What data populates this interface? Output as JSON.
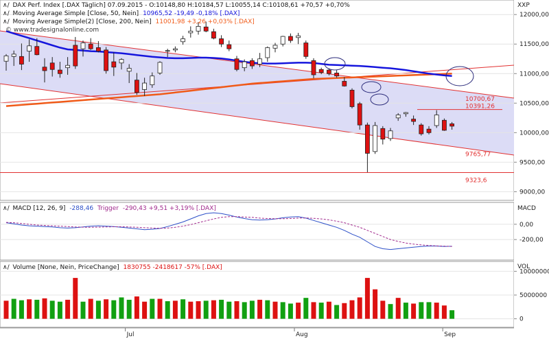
{
  "header": {
    "logo_mark": "XXP",
    "title_line": "DAX Perf. Index [.DAX Täglich] 07.09.2015 - O:10148,80 H:10184,57 L:10055,14 C:10108,61 +70,57 +0,70%",
    "ma50_label": "Moving Average Simple [Close, 50, Nein]",
    "ma50_value": "10965,52 -19,49 -0,18% [.DAX]",
    "ma200_label": "Moving Average Simple(2) [Close, 200, Nein]",
    "ma200_value": "11001,98 +3,26 +0,03% [.DAX]",
    "source": "© www.tradesignalonline.com"
  },
  "macd_panel": {
    "label": "MACD [12, 26, 9]",
    "macd_value": "-288,46",
    "trigger_label": "Trigger",
    "trigger_value": "-290,43 +9,51 +3,19% [.DAX]",
    "axis_title": "MACD"
  },
  "volume_panel": {
    "label": "Volume [None, Nein, PriceChange]",
    "value": "1830755 -2418617 -57% [.DAX]",
    "axis_title": "VOL"
  },
  "colors": {
    "up": "#dd1111",
    "down": "#11a011",
    "candle_up_body": "#ffffff",
    "candle_down_body": "#dd1111",
    "ma50": "#1515dd",
    "ma200": "#f05a18",
    "channel": "#e23030",
    "channel_fill": "#dcdcf6",
    "macd": "#2c4fc8",
    "trigger": "#a0288c"
  },
  "chart_data": [
    {
      "type": "candlestick",
      "name": "price",
      "x_labels": [
        "Jul",
        "Aug",
        "Sep"
      ],
      "y_tick_labels": [
        "12000,00",
        "11500,00",
        "11000,00",
        "10500,00",
        "10000,00",
        "9500,00",
        "9000,00"
      ],
      "ylim": [
        8900,
        12200
      ],
      "level_labels": [
        "10700,67",
        "10391,26",
        "9765,77",
        "9323,6"
      ],
      "levels": [
        10700.67,
        10391.26,
        9765.77,
        9323.6
      ],
      "candles": [
        {
          "o": 11210,
          "h": 11330,
          "l": 11050,
          "c": 11300
        },
        {
          "o": 11290,
          "h": 11390,
          "l": 11130,
          "c": 11330
        },
        {
          "o": 11290,
          "h": 11510,
          "l": 11060,
          "c": 11160
        },
        {
          "o": 11380,
          "h": 11580,
          "l": 11200,
          "c": 11470
        },
        {
          "o": 11460,
          "h": 11600,
          "l": 11310,
          "c": 11320
        },
        {
          "o": 11110,
          "h": 11260,
          "l": 10850,
          "c": 11050
        },
        {
          "o": 11180,
          "h": 11280,
          "l": 10950,
          "c": 11070
        },
        {
          "o": 11060,
          "h": 11200,
          "l": 10930,
          "c": 11000
        },
        {
          "o": 11100,
          "h": 11280,
          "l": 10980,
          "c": 11140
        },
        {
          "o": 11480,
          "h": 11620,
          "l": 11080,
          "c": 11130
        },
        {
          "o": 11420,
          "h": 11560,
          "l": 11290,
          "c": 11520
        },
        {
          "o": 11500,
          "h": 11600,
          "l": 11400,
          "c": 11420
        },
        {
          "o": 11440,
          "h": 11550,
          "l": 11360,
          "c": 11380
        },
        {
          "o": 11400,
          "h": 11450,
          "l": 11000,
          "c": 11050
        },
        {
          "o": 11200,
          "h": 11360,
          "l": 10960,
          "c": 11110
        },
        {
          "o": 11180,
          "h": 11260,
          "l": 11070,
          "c": 11240
        },
        {
          "o": 11040,
          "h": 11160,
          "l": 10840,
          "c": 11090
        },
        {
          "o": 10890,
          "h": 11010,
          "l": 10640,
          "c": 10680
        },
        {
          "o": 10730,
          "h": 10930,
          "l": 10620,
          "c": 10840
        },
        {
          "o": 10810,
          "h": 11020,
          "l": 10760,
          "c": 10960
        },
        {
          "o": 11010,
          "h": 11210,
          "l": 10980,
          "c": 11190
        },
        {
          "o": 11380,
          "h": 11420,
          "l": 11280,
          "c": 11390
        },
        {
          "o": 11400,
          "h": 11460,
          "l": 11360,
          "c": 11420
        },
        {
          "o": 11540,
          "h": 11640,
          "l": 11490,
          "c": 11590
        },
        {
          "o": 11690,
          "h": 11800,
          "l": 11610,
          "c": 11720
        },
        {
          "o": 11720,
          "h": 11870,
          "l": 11660,
          "c": 11800
        },
        {
          "o": 11790,
          "h": 11880,
          "l": 11700,
          "c": 11720
        },
        {
          "o": 11710,
          "h": 11760,
          "l": 11580,
          "c": 11600
        },
        {
          "o": 11590,
          "h": 11650,
          "l": 11450,
          "c": 11500
        },
        {
          "o": 11490,
          "h": 11560,
          "l": 11380,
          "c": 11420
        },
        {
          "o": 11250,
          "h": 11300,
          "l": 11040,
          "c": 11070
        },
        {
          "o": 11100,
          "h": 11240,
          "l": 11040,
          "c": 11200
        },
        {
          "o": 11220,
          "h": 11260,
          "l": 11080,
          "c": 11130
        },
        {
          "o": 11160,
          "h": 11350,
          "l": 11110,
          "c": 11250
        },
        {
          "o": 11270,
          "h": 11460,
          "l": 11200,
          "c": 11440
        },
        {
          "o": 11430,
          "h": 11520,
          "l": 11360,
          "c": 11480
        },
        {
          "o": 11500,
          "h": 11640,
          "l": 11460,
          "c": 11630
        },
        {
          "o": 11630,
          "h": 11680,
          "l": 11520,
          "c": 11560
        },
        {
          "o": 11610,
          "h": 11690,
          "l": 11500,
          "c": 11640
        },
        {
          "o": 11520,
          "h": 11560,
          "l": 11250,
          "c": 11290
        },
        {
          "o": 11220,
          "h": 11260,
          "l": 10920,
          "c": 10980
        },
        {
          "o": 11070,
          "h": 11100,
          "l": 10990,
          "c": 11020
        },
        {
          "o": 11060,
          "h": 11090,
          "l": 10970,
          "c": 11000
        },
        {
          "o": 11010,
          "h": 11060,
          "l": 10930,
          "c": 10960
        },
        {
          "o": 10870,
          "h": 10940,
          "l": 10780,
          "c": 10790
        },
        {
          "o": 10720,
          "h": 10750,
          "l": 10410,
          "c": 10440
        },
        {
          "o": 10490,
          "h": 10520,
          "l": 10050,
          "c": 10130
        },
        {
          "o": 10130,
          "h": 10170,
          "l": 9330,
          "c": 9650
        },
        {
          "o": 9680,
          "h": 10180,
          "l": 9640,
          "c": 10120
        },
        {
          "o": 10070,
          "h": 10110,
          "l": 9800,
          "c": 9890
        },
        {
          "o": 9900,
          "h": 10080,
          "l": 9860,
          "c": 10030
        },
        {
          "o": 10250,
          "h": 10330,
          "l": 10200,
          "c": 10300
        },
        {
          "o": 10320,
          "h": 10350,
          "l": 10270,
          "c": 10340
        },
        {
          "o": 10230,
          "h": 10290,
          "l": 10130,
          "c": 10190
        },
        {
          "o": 10130,
          "h": 10160,
          "l": 9950,
          "c": 9980
        },
        {
          "o": 10060,
          "h": 10110,
          "l": 9970,
          "c": 10000
        },
        {
          "o": 10120,
          "h": 10380,
          "l": 10080,
          "c": 10300
        },
        {
          "o": 10210,
          "h": 10240,
          "l": 10030,
          "c": 10040
        },
        {
          "o": 10150,
          "h": 10180,
          "l": 10050,
          "c": 10110
        }
      ],
      "ma50": [
        11720,
        11680,
        11640,
        11600,
        11560,
        11520,
        11480,
        11440,
        11410,
        11400,
        11390,
        11380,
        11375,
        11365,
        11355,
        11345,
        11330,
        11315,
        11300,
        11285,
        11275,
        11265,
        11260,
        11260,
        11265,
        11270,
        11270,
        11265,
        11255,
        11240,
        11220,
        11200,
        11185,
        11175,
        11170,
        11170,
        11175,
        11180,
        11185,
        11185,
        11180,
        11165,
        11150,
        11145,
        11140,
        11135,
        11130,
        11120,
        11110,
        11100,
        11090,
        11075,
        11060,
        11040,
        11020,
        11000,
        10985,
        10970,
        10960
      ],
      "ma200": [
        10450,
        10460,
        10470,
        10480,
        10490,
        10500,
        10510,
        10520,
        10530,
        10540,
        10550,
        10560,
        10570,
        10580,
        10590,
        10600,
        10610,
        10620,
        10630,
        10640,
        10650,
        10665,
        10680,
        10695,
        10710,
        10725,
        10740,
        10755,
        10770,
        10785,
        10800,
        10815,
        10830,
        10840,
        10850,
        10860,
        10870,
        10880,
        10890,
        10900,
        10910,
        10915,
        10920,
        10925,
        10930,
        10935,
        10940,
        10945,
        10950,
        10955,
        10960,
        10965,
        10970,
        10975,
        10980,
        10985,
        10990,
        10995,
        11000
      ]
    },
    {
      "type": "line",
      "name": "macd",
      "y_tick_labels": [
        "0,00",
        "-200,00"
      ],
      "ylim": [
        -450,
        250
      ],
      "series": [
        {
          "name": "MACD",
          "values": [
            20,
            5,
            -10,
            -20,
            -25,
            -30,
            -35,
            -45,
            -50,
            -45,
            -35,
            -25,
            -20,
            -25,
            -30,
            -40,
            -50,
            -60,
            -70,
            -65,
            -55,
            -30,
            0,
            30,
            70,
            110,
            140,
            150,
            140,
            120,
            95,
            75,
            60,
            55,
            60,
            70,
            85,
            95,
            100,
            80,
            50,
            20,
            -10,
            -40,
            -80,
            -130,
            -170,
            -230,
            -290,
            -320,
            -330,
            -320,
            -310,
            -300,
            -290,
            -285,
            -285,
            -290,
            -288
          ]
        },
        {
          "name": "Trigger",
          "values": [
            25,
            20,
            10,
            0,
            -10,
            -15,
            -20,
            -25,
            -30,
            -35,
            -38,
            -40,
            -38,
            -35,
            -33,
            -33,
            -35,
            -40,
            -45,
            -50,
            -52,
            -50,
            -40,
            -25,
            -5,
            20,
            45,
            70,
            90,
            100,
            100,
            95,
            90,
            80,
            75,
            72,
            72,
            75,
            80,
            82,
            78,
            70,
            58,
            40,
            20,
            -10,
            -40,
            -80,
            -120,
            -160,
            -200,
            -225,
            -245,
            -260,
            -270,
            -278,
            -283,
            -287,
            -290
          ]
        }
      ]
    },
    {
      "type": "bar",
      "name": "volume",
      "y_tick_labels": [
        "10000000",
        "5000000",
        "0"
      ],
      "ylim": [
        -1500000,
        11500000
      ],
      "values": [
        3800000,
        4200000,
        3900000,
        4100000,
        4000000,
        4300000,
        3800000,
        3600000,
        4000000,
        8600000,
        3600000,
        4200000,
        3800000,
        4100000,
        3900000,
        4500000,
        4000000,
        4700000,
        3600000,
        4200000,
        4200000,
        3700000,
        3800000,
        4100000,
        3600000,
        3700000,
        3800000,
        3900000,
        4000000,
        3600000,
        3700000,
        3500000,
        3800000,
        4000000,
        3900000,
        3600000,
        3500000,
        3200000,
        3400000,
        4400000,
        3500000,
        3400000,
        3600000,
        2900000,
        3300000,
        3900000,
        4500000,
        8600000,
        6200000,
        3800000,
        3100000,
        4400000,
        3400000,
        3200000,
        3500000,
        3500000,
        3400000,
        2800000,
        1800000
      ],
      "directions": [
        "up",
        "down",
        "down",
        "up",
        "down",
        "up",
        "down",
        "down",
        "up",
        "up",
        "down",
        "up",
        "down",
        "up",
        "down",
        "down",
        "down",
        "up",
        "up",
        "down",
        "up",
        "down",
        "up",
        "down",
        "up",
        "up",
        "down",
        "up",
        "down",
        "down",
        "up",
        "down",
        "down",
        "up",
        "down",
        "up",
        "down",
        "down",
        "up",
        "down",
        "up",
        "down",
        "up",
        "down",
        "up",
        "up",
        "up",
        "up",
        "up",
        "up",
        "down",
        "up",
        "down",
        "up",
        "down",
        "down",
        "up",
        "up",
        "down"
      ]
    }
  ]
}
